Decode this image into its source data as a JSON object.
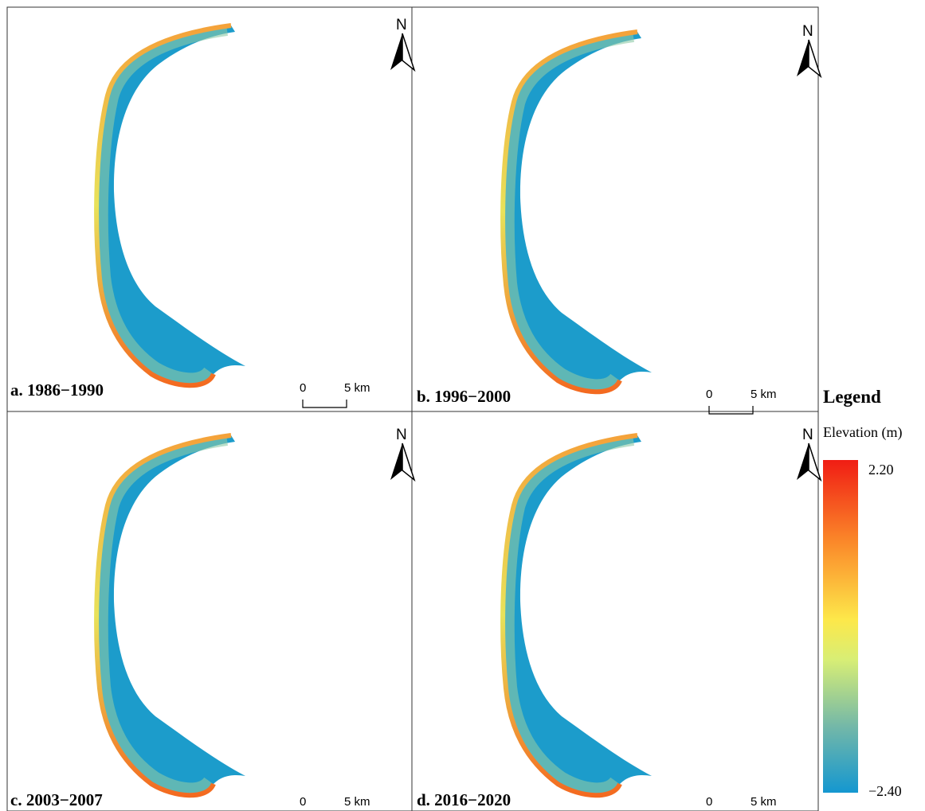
{
  "panels": [
    {
      "label": "a. 1986−1990"
    },
    {
      "label": "b. 1996−2000"
    },
    {
      "label": "c. 2003−2007"
    },
    {
      "label": "d. 2016−2020"
    }
  ],
  "north_label": "N",
  "scale_bar": {
    "start": "0",
    "end": "5 km"
  },
  "legend": {
    "title": "Legend",
    "subtitle": "Elevation (m)",
    "max": "2.20",
    "min": "−2.40"
  }
}
